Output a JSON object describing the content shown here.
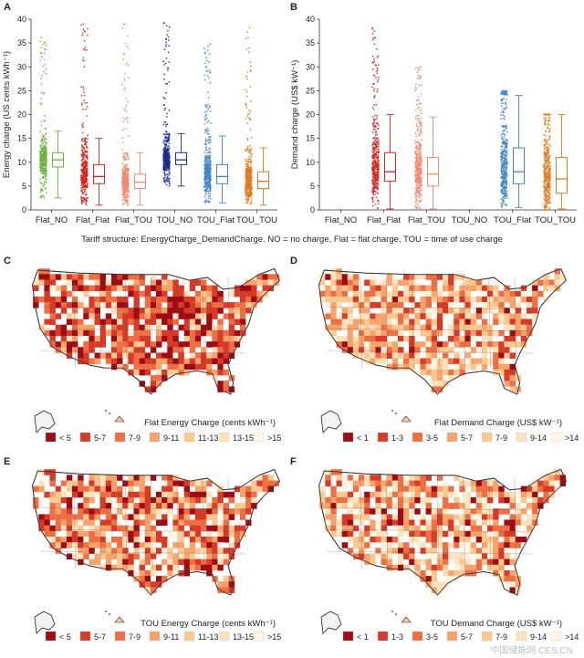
{
  "panel_letters": [
    "A",
    "B",
    "C",
    "D",
    "E",
    "F"
  ],
  "caption": "Tariff structure: EnergyCharge_DemandCharge. NO = no charge, Flat = flat charge, TOU = time of use charge",
  "watermark": "中国储能网 CES.CN",
  "colors": {
    "green": "#6db33f",
    "red": "#d7261e",
    "salmon": "#f08b6e",
    "navy": "#1f2d86",
    "blue": "#3f86c6",
    "orange": "#e07a1f",
    "c1": "#9e0b13",
    "c2": "#d83a28",
    "c3": "#ef6f45",
    "c4": "#f7a36b",
    "c5": "#fbc98f",
    "c6": "#fde3bd",
    "c7": "#fff5e4"
  },
  "chart_data": [
    {
      "type": "box",
      "panel": "A",
      "ylabel": "Energy charge (US cents kWh⁻¹)",
      "ylim": [
        0,
        40
      ],
      "yticks": [
        0,
        5,
        10,
        15,
        20,
        25,
        30,
        35,
        40
      ],
      "categories": [
        "Flat_NO",
        "Flat_Flat",
        "Flat_TOU",
        "TOU_NO",
        "TOU_Flat",
        "TOU_TOU"
      ],
      "series": [
        {
          "category": "Flat_NO",
          "color_key": "green",
          "min": 2.5,
          "q1": 9,
          "median": 10.5,
          "q3": 12,
          "max": 16.5,
          "points_max": 37
        },
        {
          "category": "Flat_Flat",
          "color_key": "red",
          "min": 1,
          "q1": 5.5,
          "median": 7,
          "q3": 9.5,
          "max": 15,
          "points_max": 39
        },
        {
          "category": "Flat_TOU",
          "color_key": "salmon",
          "min": 1,
          "q1": 4.5,
          "median": 5.8,
          "q3": 7.5,
          "max": 12,
          "points_max": 39
        },
        {
          "category": "TOU_NO",
          "color_key": "navy",
          "min": 5,
          "q1": 9.5,
          "median": 10.5,
          "q3": 12,
          "max": 16,
          "points_max": 39.5
        },
        {
          "category": "TOU_Flat",
          "color_key": "blue",
          "min": 1.5,
          "q1": 5.5,
          "median": 7,
          "q3": 9.5,
          "max": 15.5,
          "points_max": 35
        },
        {
          "category": "TOU_TOU",
          "color_key": "orange",
          "min": 1,
          "q1": 4.5,
          "median": 6,
          "q3": 8,
          "max": 13,
          "points_max": 39
        }
      ]
    },
    {
      "type": "box",
      "panel": "B",
      "ylabel": "Demand charge (US$ kW⁻¹)",
      "ylim": [
        0,
        40
      ],
      "yticks": [
        0,
        5,
        10,
        15,
        20,
        25,
        30,
        35,
        40
      ],
      "categories": [
        "Flat_NO",
        "Flat_Flat",
        "Flat_TOU",
        "TOU_NO",
        "TOU_Flat",
        "TOU_TOU"
      ],
      "series": [
        {
          "category": "Flat_NO",
          "color_key": "green",
          "empty": true
        },
        {
          "category": "Flat_Flat",
          "color_key": "red",
          "min": 0.2,
          "q1": 6,
          "median": 8,
          "q3": 12,
          "max": 20,
          "points_max": 39
        },
        {
          "category": "Flat_TOU",
          "color_key": "salmon",
          "min": 0.2,
          "q1": 5,
          "median": 7.5,
          "q3": 11,
          "max": 19.5,
          "points_max": 30
        },
        {
          "category": "TOU_NO",
          "color_key": "navy",
          "empty": true
        },
        {
          "category": "TOU_Flat",
          "color_key": "blue",
          "min": 0.5,
          "q1": 5.5,
          "median": 8,
          "q3": 13,
          "max": 24,
          "points_max": 25
        },
        {
          "category": "TOU_TOU",
          "color_key": "orange",
          "min": 0.2,
          "q1": 3.5,
          "median": 6.5,
          "q3": 11,
          "max": 20,
          "points_max": 20
        }
      ]
    },
    {
      "type": "map",
      "panel": "C",
      "title": "Flat Energy Charge (cents kWh⁻¹)",
      "legend": [
        "< 5",
        "5-7",
        "7-9",
        "9-11",
        "11-13",
        "13-15",
        ">15"
      ]
    },
    {
      "type": "map",
      "panel": "D",
      "title": "Flat Demand Charge (US$ kW⁻¹)",
      "legend": [
        "< 1",
        "1-3",
        "3-5",
        "5-7",
        "7-9",
        "9-14",
        ">14"
      ]
    },
    {
      "type": "map",
      "panel": "E",
      "title": "TOU Energy Charge (cents kWh⁻¹)",
      "legend": [
        "< 5",
        "5-7",
        "7-9",
        "9-11",
        "11-13",
        "13-15",
        ">15"
      ]
    },
    {
      "type": "map",
      "panel": "F",
      "title": "TOU Demand Charge (US$ kW⁻¹)",
      "legend": [
        "< 1",
        "1-3",
        "3-5",
        "5-7",
        "7-9",
        "9-14",
        ">14"
      ]
    }
  ]
}
